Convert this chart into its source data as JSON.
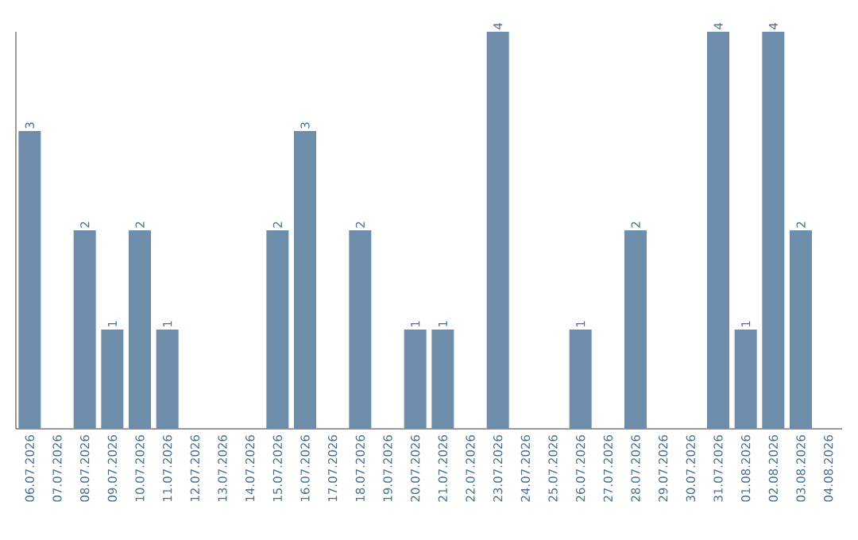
{
  "chart_data": {
    "type": "bar",
    "categories": [
      "06.07.2026",
      "07.07.2026",
      "08.07.2026",
      "09.07.2026",
      "10.07.2026",
      "11.07.2026",
      "12.07.2026",
      "13.07.2026",
      "14.07.2026",
      "15.07.2026",
      "16.07.2026",
      "17.07.2026",
      "18.07.2026",
      "19.07.2026",
      "20.07.2026",
      "21.07.2026",
      "22.07.2026",
      "23.07.2026",
      "24.07.2026",
      "25.07.2026",
      "26.07.2026",
      "27.07.2026",
      "28.07.2026",
      "29.07.2026",
      "30.07.2026",
      "31.07.2026",
      "01.08.2026",
      "02.08.2026",
      "03.08.2026",
      "04.08.2026"
    ],
    "values": [
      3,
      0,
      2,
      1,
      2,
      1,
      0,
      0,
      0,
      2,
      3,
      0,
      2,
      0,
      1,
      1,
      0,
      4,
      0,
      0,
      1,
      0,
      2,
      0,
      0,
      4,
      1,
      4,
      2,
      0
    ],
    "value_labels": [
      "3",
      null,
      "2",
      "1",
      "2",
      "1",
      null,
      null,
      null,
      "2",
      "3",
      null,
      "2",
      null,
      "1",
      "1",
      null,
      "4",
      null,
      null,
      "1",
      null,
      "2",
      null,
      null,
      "4",
      "1",
      "4",
      "2",
      null
    ],
    "color": "#6d8dab",
    "ylim": [
      0,
      4
    ]
  }
}
